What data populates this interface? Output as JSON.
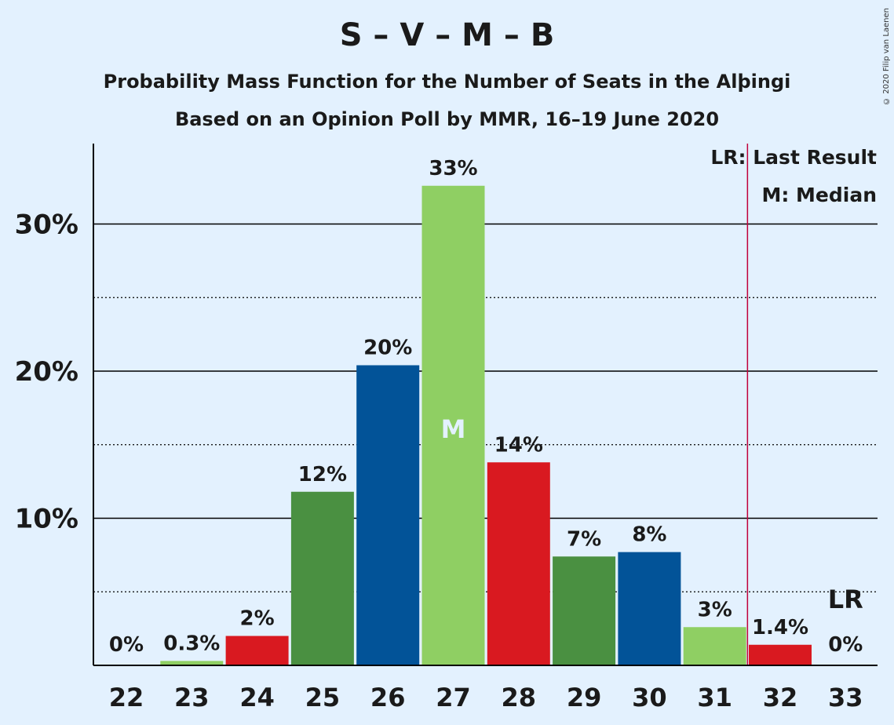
{
  "header": {
    "title": "S – V – M – B",
    "subtitle": "Probability Mass Function for the Number of Seats in the Alþingi",
    "subtitle2": "Based on an Opinion Poll by MMR, 16–19 June 2020",
    "copyright": "© 2020 Filip van Laenen"
  },
  "chart_data": {
    "type": "bar",
    "categories": [
      "22",
      "23",
      "24",
      "25",
      "26",
      "27",
      "28",
      "29",
      "30",
      "31",
      "32",
      "33"
    ],
    "values": [
      0,
      0.3,
      2.0,
      11.8,
      20.4,
      32.6,
      13.8,
      7.4,
      7.7,
      2.6,
      1.4,
      0
    ],
    "data_labels": [
      "0%",
      "0.3%",
      "2%",
      "12%",
      "20%",
      "33%",
      "14%",
      "7%",
      "8%",
      "3%",
      "1.4%",
      "0%"
    ],
    "bar_colors": [
      "#8fcf63",
      "#8fcf63",
      "#d91920",
      "#4a9041",
      "#025398",
      "#8fcf63",
      "#d91920",
      "#4a9041",
      "#025398",
      "#8fcf63",
      "#d91920",
      "#d91920"
    ],
    "ylim": [
      0,
      35.5
    ],
    "yticks": [
      10,
      20,
      30
    ],
    "ytick_labels": [
      "10%",
      "20%",
      "30%"
    ],
    "minor_gridlines": [
      5,
      15,
      25
    ],
    "median_category": "27",
    "median_label": "M",
    "last_result_category": "33",
    "last_result_label": "LR",
    "last_result_line_x": 31.5,
    "legend": [
      "LR: Last Result",
      "M: Median"
    ],
    "legend_position": "top-right",
    "grid": true,
    "colors": {
      "background": "#e3f1fe",
      "lr_line": "#c0003a",
      "axis": "#000000"
    }
  }
}
